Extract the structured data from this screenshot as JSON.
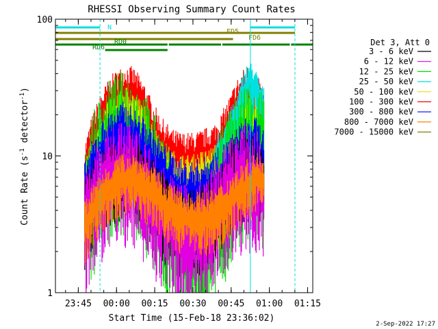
{
  "chart_data": {
    "type": "line",
    "title": "RHESSI Observing Summary Count Rates",
    "xlabel": "Start Time (15-Feb-18 23:36:02)",
    "ylabel_main": "Count Rate (s",
    "ylabel_sup1": "-1",
    "ylabel_mid": " detector",
    "ylabel_sup2": "-1",
    "ylabel_end": ")",
    "y_scale": "log",
    "ylim": [
      1,
      100
    ],
    "xlim_minutes": [
      0,
      101
    ],
    "x_ticks": [
      {
        "label": "23:45",
        "t": 8.97
      },
      {
        "label": "00:00",
        "t": 23.97
      },
      {
        "label": "00:15",
        "t": 38.97
      },
      {
        "label": "00:30",
        "t": 53.97
      },
      {
        "label": "00:45",
        "t": 68.97
      },
      {
        "label": "01:00",
        "t": 83.97
      },
      {
        "label": "01:15",
        "t": 98.97
      }
    ],
    "y_ticks": [
      {
        "label": "1",
        "v": 1
      },
      {
        "label": "10",
        "v": 10
      },
      {
        "label": "100",
        "v": 100
      }
    ],
    "legend": {
      "placement": "right",
      "header": "Det 3, Att 0",
      "entries": [
        {
          "label": "3 - 6 keV",
          "color": "#000000"
        },
        {
          "label": "6 - 12 keV",
          "color": "#e000e0"
        },
        {
          "label": "12 - 25 keV",
          "color": "#00e000"
        },
        {
          "label": "25 - 50 keV",
          "color": "#00e0e0"
        },
        {
          "label": "50 - 100 keV",
          "color": "#e0e000"
        },
        {
          "label": "100 - 300 keV",
          "color": "#ff0000"
        },
        {
          "label": "300 - 800 keV",
          "color": "#0000ff"
        },
        {
          "label": "800 - 7000 keV",
          "color": "#ff8000"
        },
        {
          "label": "7000 - 15000 keV",
          "color": "#808000"
        }
      ]
    },
    "series": [
      {
        "name": "100 - 300 keV",
        "color": "#ff0000",
        "noise": 0.35,
        "t": [
          11.5,
          14,
          18,
          22,
          25,
          28,
          31,
          35,
          38,
          42,
          46,
          50,
          54,
          58,
          62,
          65,
          68,
          71,
          74,
          76,
          78,
          80,
          81.8
        ],
        "v": [
          8,
          12,
          19,
          25,
          28,
          30,
          28,
          22,
          16,
          12,
          10,
          9.5,
          9.5,
          10,
          11,
          13,
          17,
          23,
          28,
          30,
          27,
          23,
          20
        ]
      },
      {
        "name": "50 - 100 keV",
        "color": "#e0e000",
        "noise": 0.3,
        "t": [
          11.5,
          14,
          18,
          22,
          25,
          28,
          31,
          35,
          38,
          42,
          46,
          50,
          54,
          58,
          62,
          65,
          68,
          71,
          74,
          76,
          78,
          80,
          81.8
        ],
        "v": [
          6,
          9,
          14,
          19,
          21,
          22,
          20,
          16,
          12,
          9,
          7.5,
          7,
          7,
          7.5,
          8,
          9.5,
          12,
          16,
          20,
          22,
          20,
          17,
          15
        ]
      },
      {
        "name": "25 - 50 keV",
        "color": "#00e0e0",
        "noise": 0.28,
        "t": [
          63,
          66,
          69,
          72,
          74,
          76,
          78,
          80,
          81.8
        ],
        "v": [
          10,
          12,
          16,
          22,
          30,
          35,
          32,
          26,
          22
        ]
      },
      {
        "name": "12 - 25 keV",
        "color": "#00e000",
        "noise": 0.9,
        "t": [
          11.5,
          14,
          18,
          22,
          26,
          30,
          34,
          38,
          42,
          46,
          50,
          54,
          58,
          62,
          66,
          70,
          74,
          78,
          81.8
        ],
        "v": [
          4,
          6,
          9,
          12,
          13,
          12,
          10,
          7,
          4.5,
          3,
          2.3,
          2.2,
          2.5,
          3.5,
          5.5,
          8,
          11,
          12,
          9
        ]
      },
      {
        "name": "300 - 800 keV",
        "color": "#0000ff",
        "noise": 0.45,
        "t": [
          11.5,
          14,
          18,
          22,
          26,
          30,
          34,
          38,
          42,
          46,
          50,
          54,
          58,
          62,
          66,
          70,
          74,
          78,
          81.8
        ],
        "v": [
          5,
          7,
          10,
          12.5,
          14,
          13,
          11,
          9,
          7,
          6,
          5.2,
          5.2,
          5.5,
          6,
          7,
          8.5,
          10.5,
          11,
          9
        ]
      },
      {
        "name": "3 - 6 keV",
        "color": "#000000",
        "noise": 0.5,
        "t": [
          11.5,
          15,
          20,
          25,
          30,
          35,
          40,
          45,
          50,
          55,
          60,
          65,
          70,
          75,
          80,
          81.8
        ],
        "v": [
          3.5,
          5,
          7,
          8,
          7.5,
          6,
          4.5,
          3.5,
          3,
          3,
          3.5,
          5,
          7,
          8,
          7,
          6
        ]
      },
      {
        "name": "6 - 12 keV",
        "color": "#e000e0",
        "noise": 0.7,
        "t": [
          11.5,
          15,
          20,
          25,
          30,
          35,
          40,
          45,
          50,
          55,
          60,
          65,
          70,
          75,
          80,
          81.8
        ],
        "v": [
          3,
          4.5,
          6.5,
          7.5,
          7,
          5.5,
          4,
          3,
          2.5,
          2.5,
          3,
          4.5,
          6,
          7,
          6,
          5
        ]
      },
      {
        "name": "800 - 7000 keV",
        "color": "#ff8000",
        "noise": 0.35,
        "t": [
          11.5,
          15,
          20,
          25,
          30,
          35,
          40,
          45,
          50,
          55,
          60,
          65,
          70,
          75,
          80,
          81.8
        ],
        "v": [
          3,
          4,
          5.5,
          6.5,
          7,
          6,
          5,
          4,
          3.5,
          3.5,
          3.5,
          4,
          5,
          6,
          7,
          6.5
        ]
      }
    ],
    "flags": [
      {
        "label": "N",
        "color": "#00e0e0",
        "segments": [
          [
            0,
            17.5
          ],
          [
            76.5,
            94
          ]
        ]
      },
      {
        "label": "FD5",
        "color": "#808000",
        "segments": [
          [
            0,
            76.5
          ],
          [
            76.5,
            94
          ]
        ]
      },
      {
        "label": "FD6",
        "color": "#808000",
        "segments": [
          [
            0,
            69.7
          ]
        ]
      },
      {
        "label": "RD0",
        "color": "#008000",
        "segments": [
          [
            0,
            44
          ],
          [
            44.5,
            65
          ],
          [
            65.5,
            92
          ],
          [
            92.5,
            101
          ]
        ]
      },
      {
        "label": "RD6",
        "color": "#008000",
        "segments": [
          [
            19.5,
            44
          ]
        ]
      }
    ],
    "vlines_minutes": [
      17.5,
      76.5,
      94
    ],
    "timestamp": "2-Sep-2022 17:27"
  }
}
